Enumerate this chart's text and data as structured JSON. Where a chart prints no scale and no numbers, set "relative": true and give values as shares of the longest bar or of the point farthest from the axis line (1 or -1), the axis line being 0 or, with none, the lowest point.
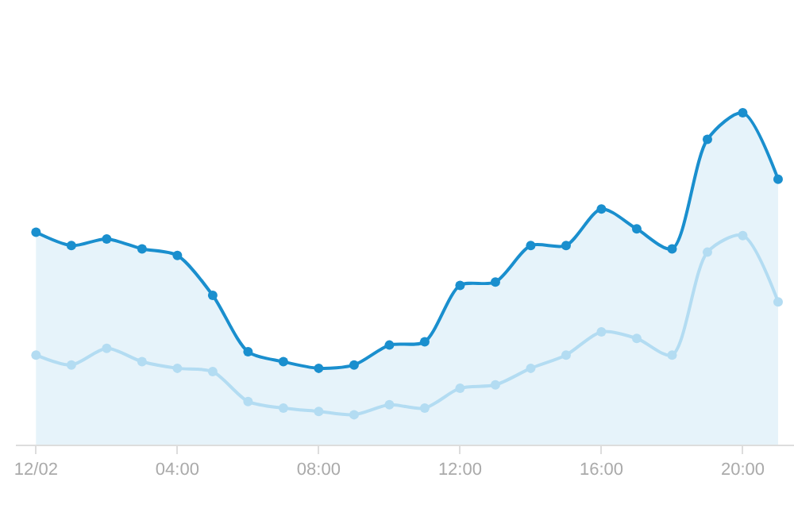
{
  "chart_data": {
    "type": "line",
    "relative": true,
    "x": [
      0,
      1,
      2,
      3,
      4,
      5,
      6,
      7,
      8,
      9,
      10,
      11,
      12,
      13,
      14,
      15,
      16,
      17,
      18,
      19,
      20,
      21
    ],
    "xlim": [
      -0.57,
      21.45
    ],
    "xticks": [
      {
        "value": 0,
        "label": "12/02"
      },
      {
        "value": 4,
        "label": "04:00"
      },
      {
        "value": 8,
        "label": "08:00"
      },
      {
        "value": 12,
        "label": "12:00"
      },
      {
        "value": 16,
        "label": "16:00"
      },
      {
        "value": 20,
        "label": "20:00"
      }
    ],
    "series": [
      {
        "type": "area",
        "color": "#1a8fce",
        "values": [
          0.64,
          0.6,
          0.62,
          0.59,
          0.57,
          0.45,
          0.28,
          0.25,
          0.23,
          0.24,
          0.3,
          0.31,
          0.48,
          0.49,
          0.6,
          0.6,
          0.71,
          0.65,
          0.59,
          0.92,
          1,
          0.8
        ]
      },
      {
        "color": "#b3dcf2",
        "values": [
          0.27,
          0.24,
          0.29,
          0.25,
          0.23,
          0.22,
          0.13,
          0.11,
          0.1,
          0.09,
          0.12,
          0.11,
          0.17,
          0.18,
          0.23,
          0.27,
          0.34,
          0.32,
          0.27,
          0.58,
          0.63,
          0.43
        ]
      }
    ],
    "marker": "circle",
    "line_style": "solid",
    "tick_labels": "x"
  }
}
